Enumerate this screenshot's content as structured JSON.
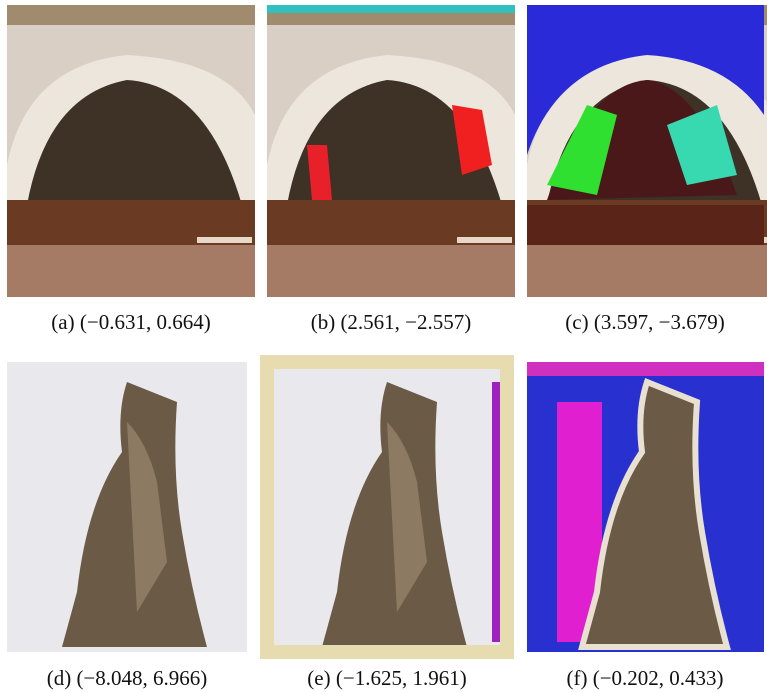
{
  "figure": {
    "panels": [
      {
        "caption": "(a) (−0.631, 0.664)"
      },
      {
        "caption": "(b) (2.561, −2.557)"
      },
      {
        "caption": "(c) (3.597, −3.679)"
      },
      {
        "caption": "(d) (−8.048, 6.966)"
      },
      {
        "caption": "(e) (−1.625, 1.961)"
      },
      {
        "caption": "(f) (−0.202, 0.433)"
      }
    ]
  }
}
